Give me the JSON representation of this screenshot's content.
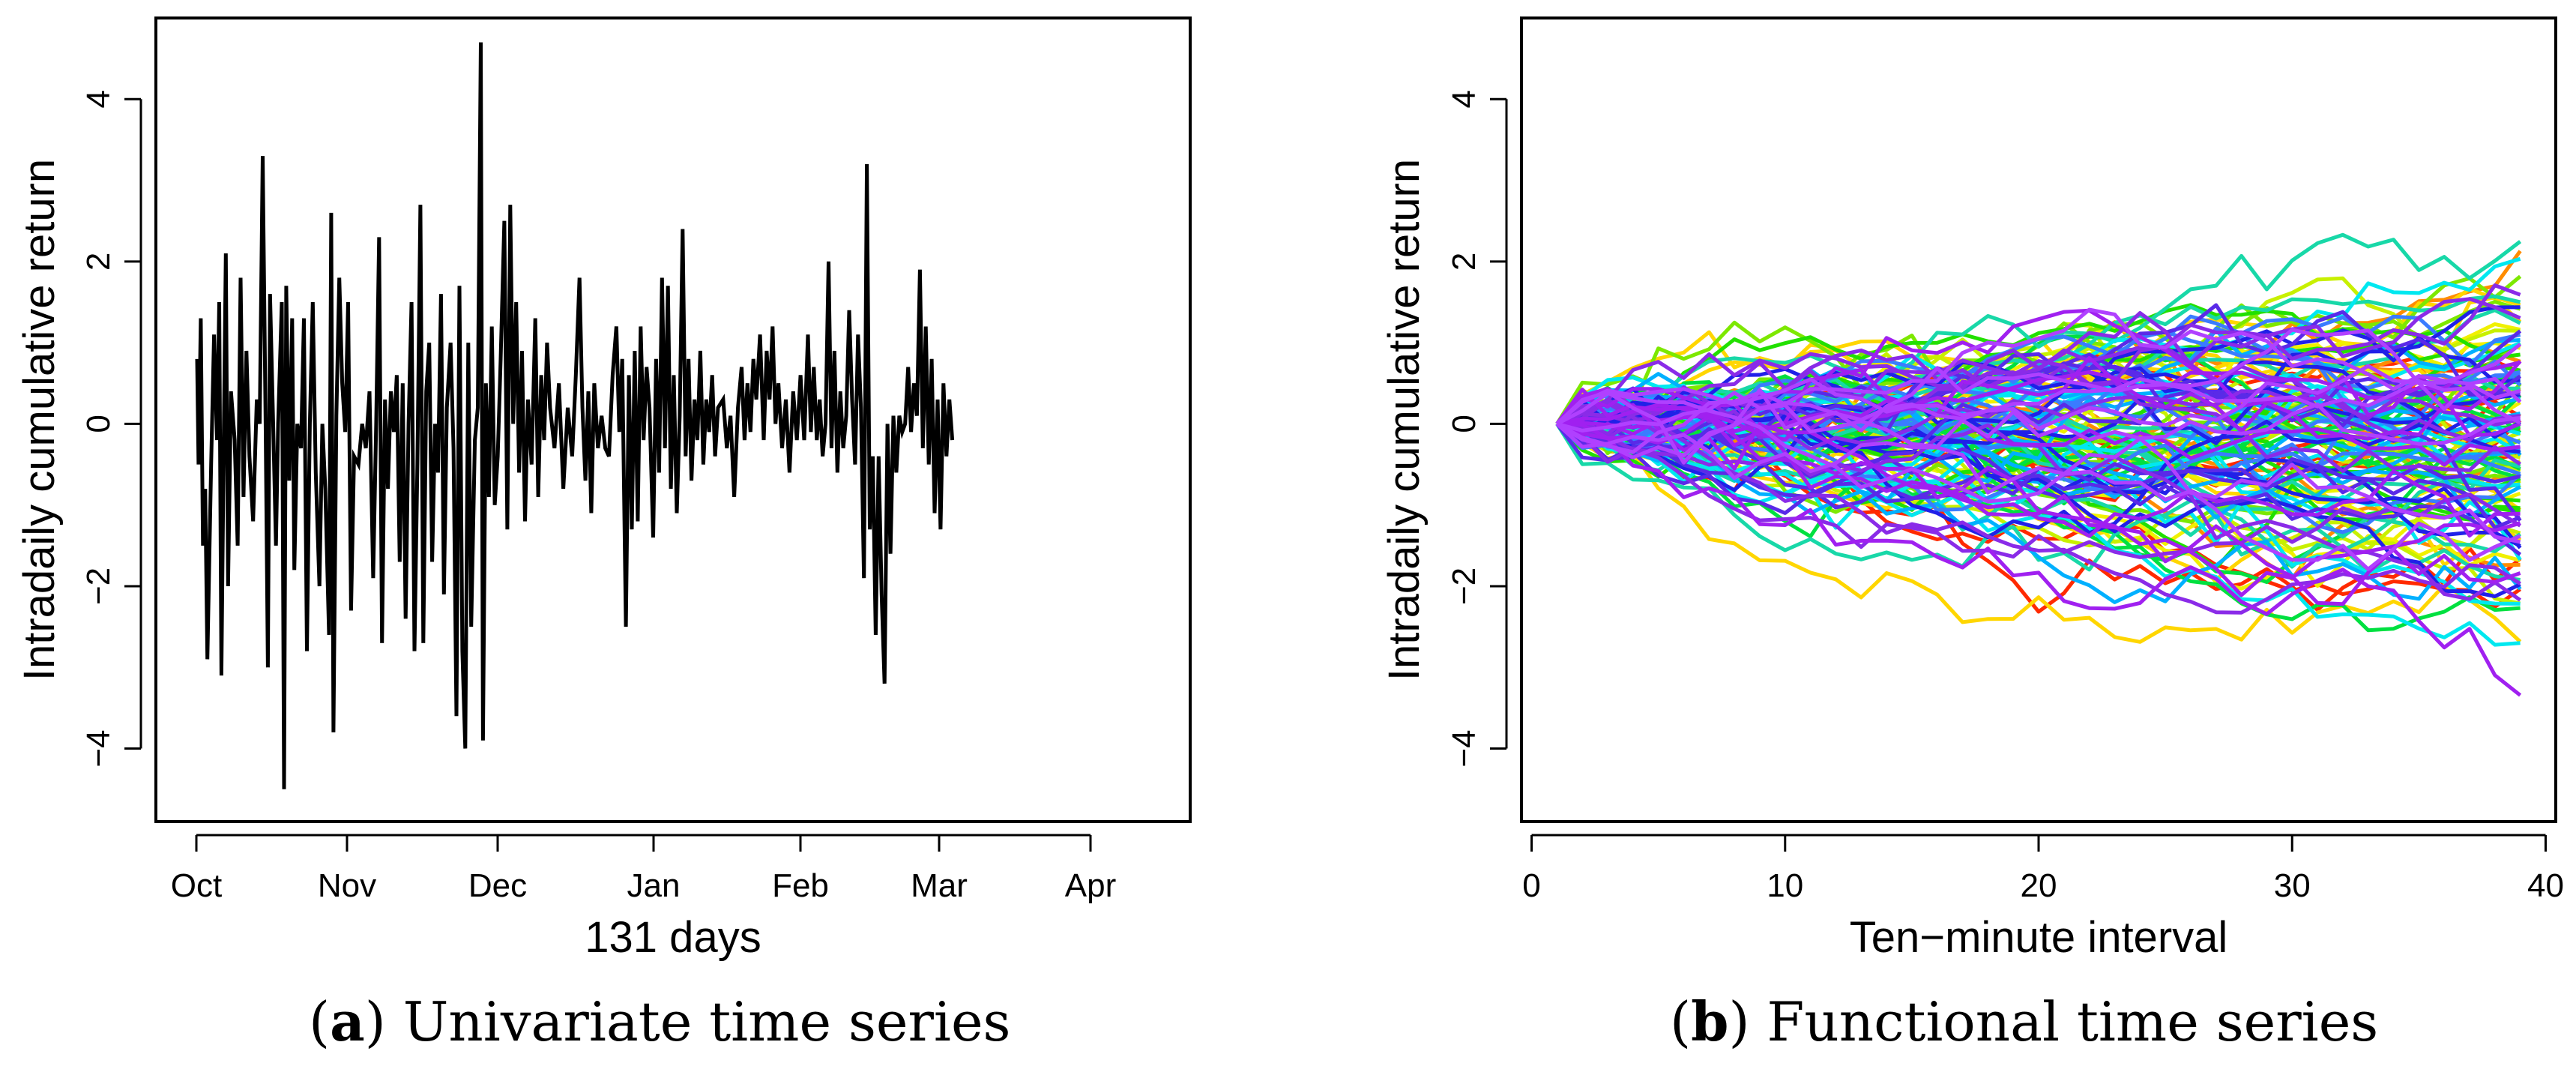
{
  "chart_data": [
    {
      "type": "line",
      "panel": "a",
      "xlabel": "131 days",
      "ylabel": "Intradaily cumulative return",
      "x_tick_labels": [
        "Oct",
        "Nov",
        "Dec",
        "Jan",
        "Feb",
        "Mar",
        "Apr"
      ],
      "y_ticks": [
        -4,
        -2,
        0,
        2,
        4
      ],
      "y_tick_labels": [
        "−4",
        "−2",
        "0",
        "2",
        "4"
      ],
      "ylim": [
        -4.9,
        5.0
      ],
      "n_days": 131,
      "series_color": "#000000",
      "series": [
        {
          "name": "Intradaily cumulative return",
          "points": [
            [
              0.1,
              0.8
            ],
            [
              0.3,
              -0.5
            ],
            [
              0.6,
              1.3
            ],
            [
              0.9,
              -1.5
            ],
            [
              1.2,
              -0.8
            ],
            [
              1.5,
              -2.9
            ],
            [
              2.0,
              -0.5
            ],
            [
              2.4,
              1.1
            ],
            [
              2.8,
              -0.2
            ],
            [
              3.1,
              1.5
            ],
            [
              3.4,
              -3.1
            ],
            [
              3.7,
              -0.3
            ],
            [
              4.0,
              2.1
            ],
            [
              4.3,
              -2.0
            ],
            [
              4.7,
              0.4
            ],
            [
              5.2,
              -0.2
            ],
            [
              5.6,
              -1.5
            ],
            [
              6.0,
              1.8
            ],
            [
              6.4,
              -0.9
            ],
            [
              6.8,
              0.9
            ],
            [
              7.2,
              -0.4
            ],
            [
              7.7,
              -1.2
            ],
            [
              8.2,
              0.3
            ],
            [
              8.6,
              0.0
            ],
            [
              9.0,
              3.3
            ],
            [
              9.4,
              0.0
            ],
            [
              9.7,
              -3.0
            ],
            [
              10.0,
              1.6
            ],
            [
              10.4,
              0.1
            ],
            [
              10.8,
              -1.5
            ],
            [
              11.1,
              0.0
            ],
            [
              11.6,
              1.5
            ],
            [
              11.9,
              -4.5
            ],
            [
              12.2,
              1.7
            ],
            [
              12.6,
              -0.7
            ],
            [
              13.0,
              1.3
            ],
            [
              13.3,
              -1.8
            ],
            [
              13.7,
              0.0
            ],
            [
              14.2,
              -0.3
            ],
            [
              14.6,
              1.3
            ],
            [
              15.0,
              -2.8
            ],
            [
              15.4,
              0.0
            ],
            [
              15.8,
              1.5
            ],
            [
              16.2,
              -0.6
            ],
            [
              16.7,
              -2.0
            ],
            [
              17.1,
              0.0
            ],
            [
              17.5,
              -0.8
            ],
            [
              18.0,
              -2.6
            ],
            [
              18.3,
              2.6
            ],
            [
              18.6,
              -3.8
            ],
            [
              19.0,
              0.1
            ],
            [
              19.4,
              1.8
            ],
            [
              19.8,
              0.5
            ],
            [
              20.2,
              -0.1
            ],
            [
              20.6,
              1.5
            ],
            [
              21.0,
              -2.3
            ],
            [
              21.4,
              -0.4
            ],
            [
              22.0,
              -0.5
            ],
            [
              22.5,
              0.0
            ],
            [
              23.0,
              -0.3
            ],
            [
              23.5,
              0.4
            ],
            [
              24.0,
              -1.9
            ],
            [
              24.4,
              0.0
            ],
            [
              24.8,
              2.3
            ],
            [
              25.2,
              -2.7
            ],
            [
              25.6,
              0.3
            ],
            [
              26.0,
              -0.8
            ],
            [
              26.4,
              0.4
            ],
            [
              26.8,
              -0.1
            ],
            [
              27.2,
              0.6
            ],
            [
              27.6,
              -1.7
            ],
            [
              28.0,
              0.5
            ],
            [
              28.4,
              -2.4
            ],
            [
              28.8,
              0.0
            ],
            [
              29.2,
              1.5
            ],
            [
              29.6,
              -2.8
            ],
            [
              30.0,
              -0.5
            ],
            [
              30.4,
              2.7
            ],
            [
              30.8,
              -2.7
            ],
            [
              31.2,
              0.4
            ],
            [
              31.6,
              1.0
            ],
            [
              32.0,
              -1.7
            ],
            [
              32.4,
              0.0
            ],
            [
              32.8,
              -0.6
            ],
            [
              33.2,
              1.6
            ],
            [
              33.6,
              -2.1
            ],
            [
              34.0,
              0.2
            ],
            [
              34.5,
              1.0
            ],
            [
              34.9,
              -0.3
            ],
            [
              35.3,
              -3.6
            ],
            [
              35.7,
              1.7
            ],
            [
              36.1,
              -2.8
            ],
            [
              36.5,
              -4.0
            ],
            [
              36.9,
              1.0
            ],
            [
              37.3,
              -2.5
            ],
            [
              37.8,
              -0.2
            ],
            [
              38.2,
              0.2
            ],
            [
              38.6,
              4.7
            ],
            [
              38.9,
              -3.9
            ],
            [
              39.3,
              0.5
            ],
            [
              39.7,
              -0.9
            ],
            [
              40.1,
              1.2
            ],
            [
              40.5,
              -1.0
            ],
            [
              40.9,
              -0.4
            ],
            [
              41.3,
              0.8
            ],
            [
              41.8,
              2.5
            ],
            [
              42.2,
              -1.3
            ],
            [
              42.6,
              2.7
            ],
            [
              43.0,
              0.0
            ],
            [
              43.4,
              1.5
            ],
            [
              43.8,
              -0.6
            ],
            [
              44.2,
              0.9
            ],
            [
              44.6,
              -1.2
            ],
            [
              45.0,
              0.3
            ],
            [
              45.5,
              -0.5
            ],
            [
              46.0,
              1.3
            ],
            [
              46.4,
              -0.9
            ],
            [
              46.8,
              0.6
            ],
            [
              47.2,
              -0.2
            ],
            [
              47.6,
              1.0
            ],
            [
              48.0,
              0.2
            ],
            [
              48.6,
              -0.3
            ],
            [
              49.2,
              0.5
            ],
            [
              49.8,
              -0.8
            ],
            [
              50.4,
              0.2
            ],
            [
              51.0,
              -0.4
            ],
            [
              51.5,
              0.6
            ],
            [
              52.0,
              1.8
            ],
            [
              52.4,
              0.2
            ],
            [
              52.8,
              -0.7
            ],
            [
              53.2,
              0.4
            ],
            [
              53.6,
              -1.1
            ],
            [
              54.0,
              0.5
            ],
            [
              54.5,
              -0.3
            ],
            [
              55.0,
              0.1
            ],
            [
              55.5,
              -0.3
            ],
            [
              56.0,
              -0.4
            ],
            [
              56.5,
              0.6
            ],
            [
              57.0,
              1.2
            ],
            [
              57.4,
              -0.1
            ],
            [
              57.8,
              0.8
            ],
            [
              58.3,
              -2.5
            ],
            [
              58.7,
              0.6
            ],
            [
              59.1,
              -1.3
            ],
            [
              59.5,
              0.9
            ],
            [
              59.9,
              -1.2
            ],
            [
              60.3,
              1.2
            ],
            [
              60.7,
              -0.2
            ],
            [
              61.1,
              0.7
            ],
            [
              61.5,
              0.2
            ],
            [
              62.0,
              -1.4
            ],
            [
              62.4,
              0.8
            ],
            [
              62.8,
              -0.6
            ],
            [
              63.2,
              1.8
            ],
            [
              63.6,
              -0.3
            ],
            [
              64.0,
              1.7
            ],
            [
              64.4,
              -0.8
            ],
            [
              64.8,
              0.6
            ],
            [
              65.2,
              -1.1
            ],
            [
              65.6,
              0.1
            ],
            [
              66.0,
              2.4
            ],
            [
              66.4,
              -0.4
            ],
            [
              66.8,
              0.8
            ],
            [
              67.2,
              -0.7
            ],
            [
              67.6,
              0.3
            ],
            [
              68.0,
              -0.2
            ],
            [
              68.4,
              0.9
            ],
            [
              68.8,
              -0.5
            ],
            [
              69.2,
              0.3
            ],
            [
              69.6,
              -0.1
            ],
            [
              70.0,
              0.6
            ],
            [
              70.4,
              -0.4
            ],
            [
              70.8,
              0.2
            ],
            [
              71.5,
              0.3
            ],
            [
              72.0,
              -0.3
            ],
            [
              72.5,
              0.1
            ],
            [
              73.0,
              -0.9
            ],
            [
              73.5,
              0.2
            ],
            [
              74.0,
              0.7
            ],
            [
              74.4,
              -0.2
            ],
            [
              74.8,
              0.5
            ],
            [
              75.2,
              -0.1
            ],
            [
              75.6,
              0.8
            ],
            [
              76.0,
              0.3
            ],
            [
              76.5,
              1.1
            ],
            [
              77.0,
              -0.2
            ],
            [
              77.4,
              0.9
            ],
            [
              77.8,
              0.3
            ],
            [
              78.2,
              1.2
            ],
            [
              78.6,
              0.0
            ],
            [
              79.0,
              0.5
            ],
            [
              79.5,
              -0.3
            ],
            [
              80.0,
              0.3
            ],
            [
              80.5,
              -0.6
            ],
            [
              81.0,
              0.4
            ],
            [
              81.5,
              -0.2
            ],
            [
              82.0,
              0.6
            ],
            [
              82.5,
              -0.2
            ],
            [
              83.0,
              1.1
            ],
            [
              83.4,
              -0.1
            ],
            [
              83.8,
              0.7
            ],
            [
              84.2,
              -0.2
            ],
            [
              84.6,
              0.3
            ],
            [
              85.0,
              -0.4
            ],
            [
              85.4,
              0.0
            ],
            [
              85.8,
              2.0
            ],
            [
              86.2,
              -0.3
            ],
            [
              86.6,
              0.9
            ],
            [
              87.0,
              -0.6
            ],
            [
              87.4,
              0.4
            ],
            [
              87.8,
              -0.3
            ],
            [
              88.2,
              0.1
            ],
            [
              88.6,
              1.4
            ],
            [
              89.0,
              0.3
            ],
            [
              89.4,
              -0.5
            ],
            [
              89.8,
              1.1
            ],
            [
              90.2,
              0.2
            ],
            [
              90.6,
              -1.9
            ],
            [
              91.0,
              3.2
            ],
            [
              91.4,
              -1.3
            ],
            [
              91.8,
              -0.4
            ],
            [
              92.2,
              -2.6
            ],
            [
              92.6,
              -0.4
            ],
            [
              93.0,
              -2.1
            ],
            [
              93.4,
              -3.2
            ],
            [
              93.8,
              0.0
            ],
            [
              94.2,
              -1.6
            ],
            [
              94.6,
              0.1
            ],
            [
              95.0,
              -0.6
            ],
            [
              95.4,
              0.1
            ],
            [
              95.8,
              -0.1
            ],
            [
              96.2,
              0.0
            ],
            [
              96.6,
              0.7
            ],
            [
              97.0,
              -0.1
            ],
            [
              97.4,
              0.5
            ],
            [
              97.8,
              0.1
            ],
            [
              98.2,
              1.9
            ],
            [
              98.6,
              -0.3
            ],
            [
              99.0,
              1.2
            ],
            [
              99.4,
              -0.5
            ],
            [
              99.8,
              0.8
            ],
            [
              100.2,
              -1.1
            ],
            [
              100.6,
              0.3
            ],
            [
              101.0,
              -1.3
            ],
            [
              101.4,
              0.5
            ],
            [
              101.8,
              -0.4
            ],
            [
              102.2,
              0.3
            ],
            [
              102.6,
              -0.2
            ]
          ]
        }
      ]
    },
    {
      "type": "line",
      "panel": "b",
      "xlabel": "Ten−minute interval",
      "ylabel": "Intradaily cumulative return",
      "x_ticks": [
        0,
        10,
        20,
        30,
        40
      ],
      "x_tick_labels": [
        "0",
        "10",
        "20",
        "30",
        "40"
      ],
      "y_ticks": [
        -4,
        -2,
        0,
        2,
        4
      ],
      "y_tick_labels": [
        "−4",
        "−2",
        "0",
        "2",
        "4"
      ],
      "xlim": [
        -0.4,
        40.4
      ],
      "ylim": [
        -4.9,
        5.0
      ],
      "n_curves": 131,
      "curve_x_range": [
        1,
        39
      ],
      "palette": "rainbow (red to purple)",
      "colors": [
        "#ff2a00",
        "#ff8c00",
        "#ffd600",
        "#f0f000",
        "#c8f000",
        "#7de800",
        "#22e000",
        "#00e040",
        "#18d8a8",
        "#00e8f0",
        "#00b0ff",
        "#3a7cff",
        "#2020e8",
        "#5a2ae8",
        "#8a2be8",
        "#a020f0",
        "#b040ff"
      ]
    }
  ],
  "captions": {
    "a": {
      "letter": "a",
      "text": "Univariate time series"
    },
    "b": {
      "letter": "b",
      "text": "Functional time series"
    }
  }
}
